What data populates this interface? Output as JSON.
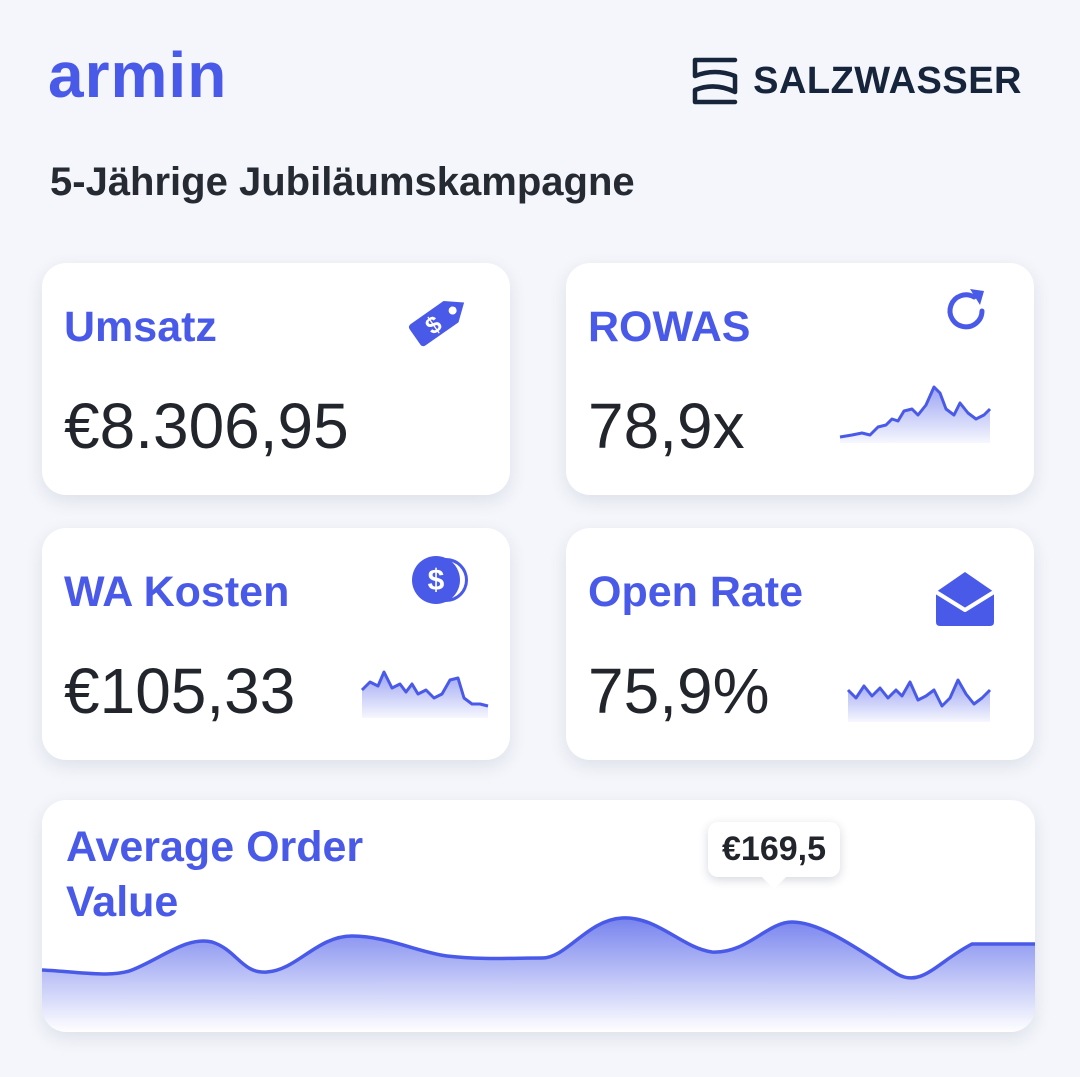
{
  "header": {
    "logo_text": "armin",
    "brand_name": "SALZWASSER",
    "title": "5-Jährige Jubiläumskampagne"
  },
  "colors": {
    "accent": "#4a5ae8",
    "text_dark": "#22262c",
    "background": "#f4f6fb"
  },
  "cards": {
    "umsatz": {
      "label": "Umsatz",
      "value": "€8.306,95",
      "icon": "price-tag-dollar-icon"
    },
    "rowas": {
      "label": "ROWAS",
      "value": "78,9x",
      "icon": "refresh-icon"
    },
    "wa_kosten": {
      "label": "WA Kosten",
      "value": "€105,33",
      "icon": "coins-dollar-icon"
    },
    "open_rate": {
      "label": "Open Rate",
      "value": "75,9%",
      "icon": "open-envelope-icon"
    }
  },
  "aov": {
    "label_line1": "Average Order",
    "label_line2": "Value",
    "tooltip": "€169,5"
  }
}
